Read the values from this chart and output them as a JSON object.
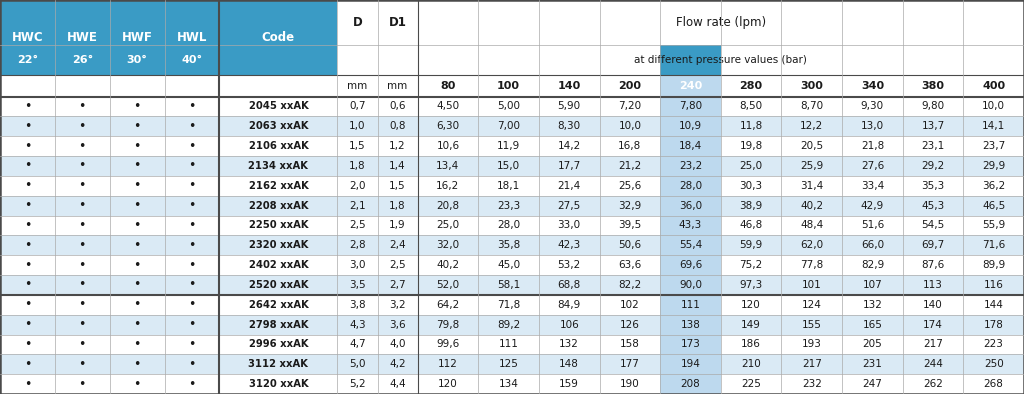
{
  "title_line1": "Flow rate (lpm)",
  "title_line2": "at different pressure values (bar)",
  "blue": "#3A9BC5",
  "white": "#FFFFFF",
  "light_blue_row": "#DAEAF5",
  "col240_header_bg": "#3A9BC5",
  "col240_row_bg": "#BDD9EE",
  "border_dark": "#4A4A4A",
  "border_thin": "#AAAAAA",
  "text_dark": "#1A1A1A",
  "text_white": "#FFFFFF",
  "hwc_headers": [
    "HWC",
    "HWE",
    "HWF",
    "HWL"
  ],
  "angle_headers": [
    "22°",
    "26°",
    "30°",
    "40°"
  ],
  "pressure_headers": [
    "80",
    "100",
    "140",
    "200",
    "240",
    "280",
    "300",
    "340",
    "380",
    "400"
  ],
  "highlighted_pressure_idx": 4,
  "codes": [
    "2045 xxAK",
    "2063 xxAK",
    "2106 xxAK",
    "2134 xxAK",
    "2162 xxAK",
    "2208 xxAK",
    "2250 xxAK",
    "2320 xxAK",
    "2402 xxAK",
    "2520 xxAK",
    "2642 xxAK",
    "2798 xxAK",
    "2996 xxAK",
    "3112 xxAK",
    "3120 xxAK"
  ],
  "D_values": [
    "0,7",
    "1,0",
    "1,5",
    "1,8",
    "2,0",
    "2,1",
    "2,5",
    "2,8",
    "3,0",
    "3,5",
    "3,8",
    "4,3",
    "4,7",
    "5,0",
    "5,2"
  ],
  "D1_values": [
    "0,6",
    "0,8",
    "1,2",
    "1,4",
    "1,5",
    "1,8",
    "1,9",
    "2,4",
    "2,5",
    "2,7",
    "3,2",
    "3,6",
    "4,0",
    "4,2",
    "4,4"
  ],
  "flow_data": [
    [
      "4,50",
      "5,00",
      "5,90",
      "7,20",
      "7,80",
      "8,50",
      "8,70",
      "9,30",
      "9,80",
      "10,0"
    ],
    [
      "6,30",
      "7,00",
      "8,30",
      "10,0",
      "10,9",
      "11,8",
      "12,2",
      "13,0",
      "13,7",
      "14,1"
    ],
    [
      "10,6",
      "11,9",
      "14,2",
      "16,8",
      "18,4",
      "19,8",
      "20,5",
      "21,8",
      "23,1",
      "23,7"
    ],
    [
      "13,4",
      "15,0",
      "17,7",
      "21,2",
      "23,2",
      "25,0",
      "25,9",
      "27,6",
      "29,2",
      "29,9"
    ],
    [
      "16,2",
      "18,1",
      "21,4",
      "25,6",
      "28,0",
      "30,3",
      "31,4",
      "33,4",
      "35,3",
      "36,2"
    ],
    [
      "20,8",
      "23,3",
      "27,5",
      "32,9",
      "36,0",
      "38,9",
      "40,2",
      "42,9",
      "45,3",
      "46,5"
    ],
    [
      "25,0",
      "28,0",
      "33,0",
      "39,5",
      "43,3",
      "46,8",
      "48,4",
      "51,6",
      "54,5",
      "55,9"
    ],
    [
      "32,0",
      "35,8",
      "42,3",
      "50,6",
      "55,4",
      "59,9",
      "62,0",
      "66,0",
      "69,7",
      "71,6"
    ],
    [
      "40,2",
      "45,0",
      "53,2",
      "63,6",
      "69,6",
      "75,2",
      "77,8",
      "82,9",
      "87,6",
      "89,9"
    ],
    [
      "52,0",
      "58,1",
      "68,8",
      "82,2",
      "90,0",
      "97,3",
      "101",
      "107",
      "113",
      "116"
    ],
    [
      "64,2",
      "71,8",
      "84,9",
      "102",
      "111",
      "120",
      "124",
      "132",
      "140",
      "144"
    ],
    [
      "79,8",
      "89,2",
      "106",
      "126",
      "138",
      "149",
      "155",
      "165",
      "174",
      "178"
    ],
    [
      "99,6",
      "111",
      "132",
      "158",
      "173",
      "186",
      "193",
      "205",
      "217",
      "223"
    ],
    [
      "112",
      "125",
      "148",
      "177",
      "194",
      "210",
      "217",
      "231",
      "244",
      "250"
    ],
    [
      "120",
      "134",
      "159",
      "190",
      "208",
      "225",
      "232",
      "247",
      "262",
      "268"
    ]
  ],
  "thick_border_after_data_row": 10,
  "figsize": [
    10.24,
    3.94
  ],
  "dpi": 100
}
